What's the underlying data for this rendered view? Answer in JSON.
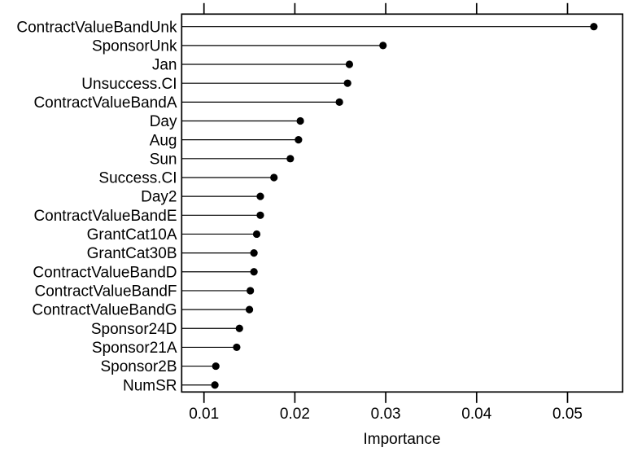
{
  "figure": {
    "background_color": "#ffffff",
    "foreground_color": "#000000"
  },
  "chart_data": {
    "type": "scatter",
    "variant": "dotchart-lollipop",
    "orientation": "horizontal",
    "title": "",
    "xlabel": "Importance",
    "ylabel": "",
    "xlim": [
      0.0075,
      0.0561
    ],
    "xticks": [
      0.01,
      0.02,
      0.03,
      0.04,
      0.05
    ],
    "xtick_labels": [
      "0.01",
      "0.02",
      "0.03",
      "0.04",
      "0.05"
    ],
    "ticks_on_top": true,
    "ticks_on_bottom": true,
    "grid": false,
    "frame": true,
    "point_color": "#000000",
    "line_color": "#000000",
    "categories": [
      "ContractValueBandUnk",
      "SponsorUnk",
      "Jan",
      "Unsuccess.CI",
      "ContractValueBandA",
      "Day",
      "Aug",
      "Sun",
      "Success.CI",
      "Day2",
      "ContractValueBandE",
      "GrantCat10A",
      "GrantCat30B",
      "ContractValueBandD",
      "ContractValueBandF",
      "ContractValueBandG",
      "Sponsor24D",
      "Sponsor21A",
      "Sponsor2B",
      "NumSR"
    ],
    "values": [
      0.0529,
      0.0297,
      0.026,
      0.0258,
      0.0249,
      0.0206,
      0.0204,
      0.0195,
      0.0177,
      0.0162,
      0.0162,
      0.0158,
      0.0155,
      0.0155,
      0.0151,
      0.015,
      0.0139,
      0.0136,
      0.0113,
      0.0112
    ]
  }
}
